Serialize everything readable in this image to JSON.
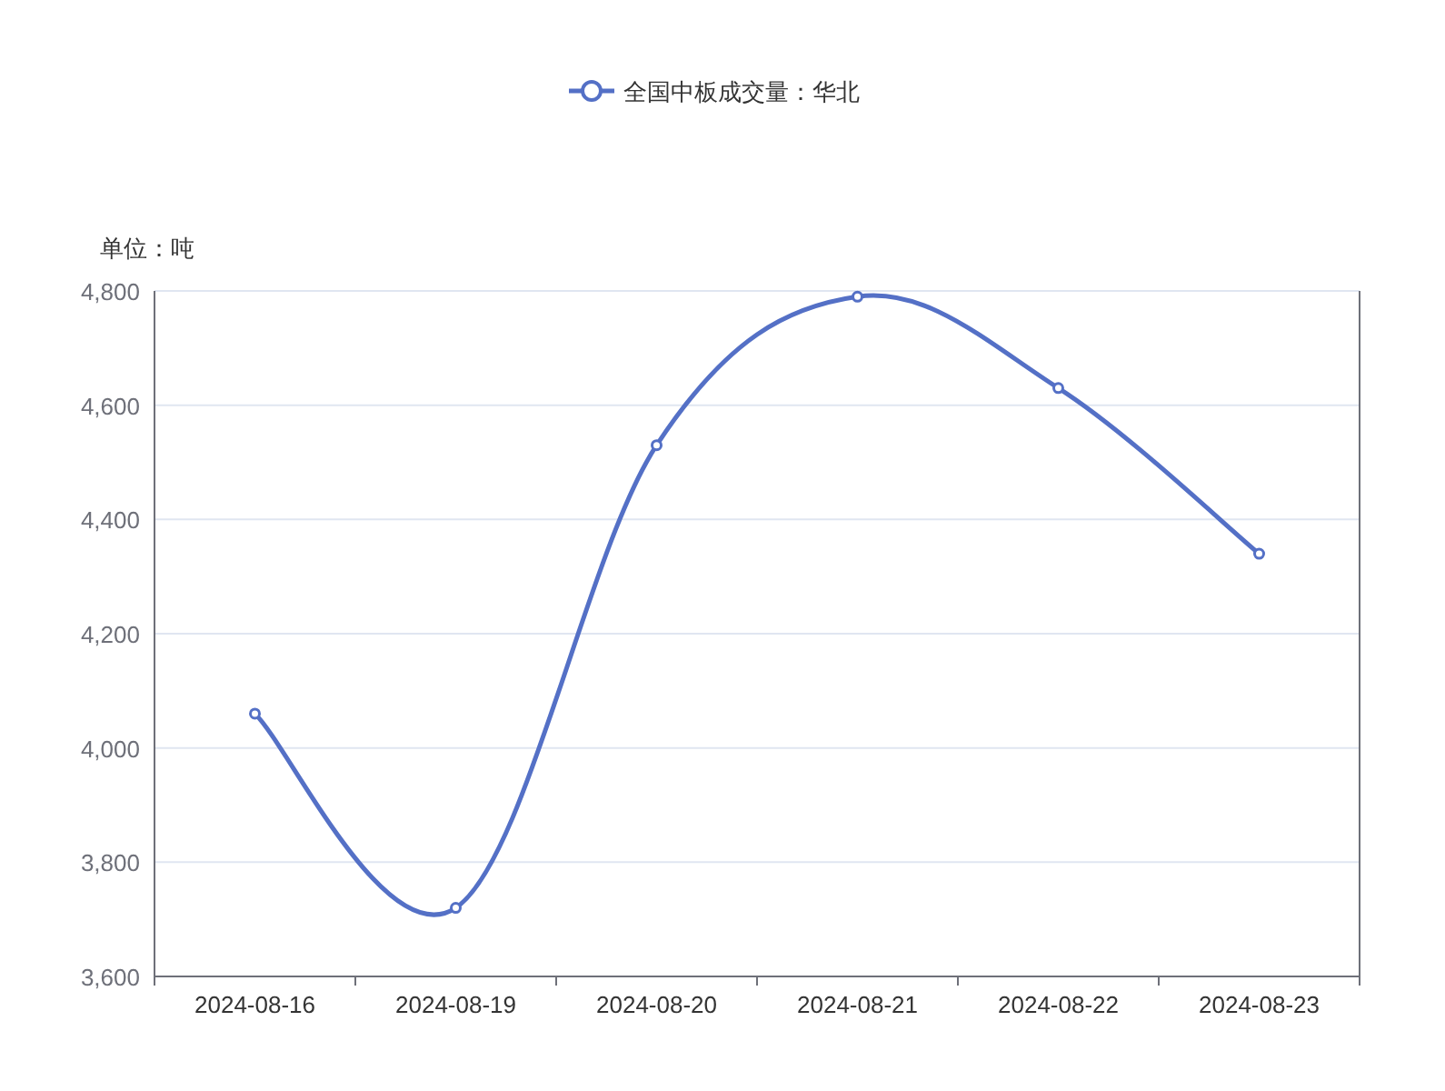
{
  "chart_data": {
    "type": "line",
    "ylabel": "单位：吨",
    "categories": [
      "2024-08-16",
      "2024-08-19",
      "2024-08-20",
      "2024-08-21",
      "2024-08-22",
      "2024-08-23"
    ],
    "series": [
      {
        "name": "全国中板成交量：华北",
        "color": "#5470c6",
        "values": [
          4060,
          3720,
          4530,
          4790,
          4630,
          4340
        ]
      }
    ],
    "ylim": [
      3600,
      4800
    ],
    "yticks": [
      {
        "value": 3600,
        "label": "3,600"
      },
      {
        "value": 3800,
        "label": "3,800"
      },
      {
        "value": 4000,
        "label": "4,000"
      },
      {
        "value": 4200,
        "label": "4,200"
      },
      {
        "value": 4400,
        "label": "4,400"
      },
      {
        "value": 4600,
        "label": "4,600"
      },
      {
        "value": 4800,
        "label": "4,800"
      }
    ],
    "grid": "y",
    "legend": "top",
    "marker": "circle",
    "line_style": "solid"
  }
}
